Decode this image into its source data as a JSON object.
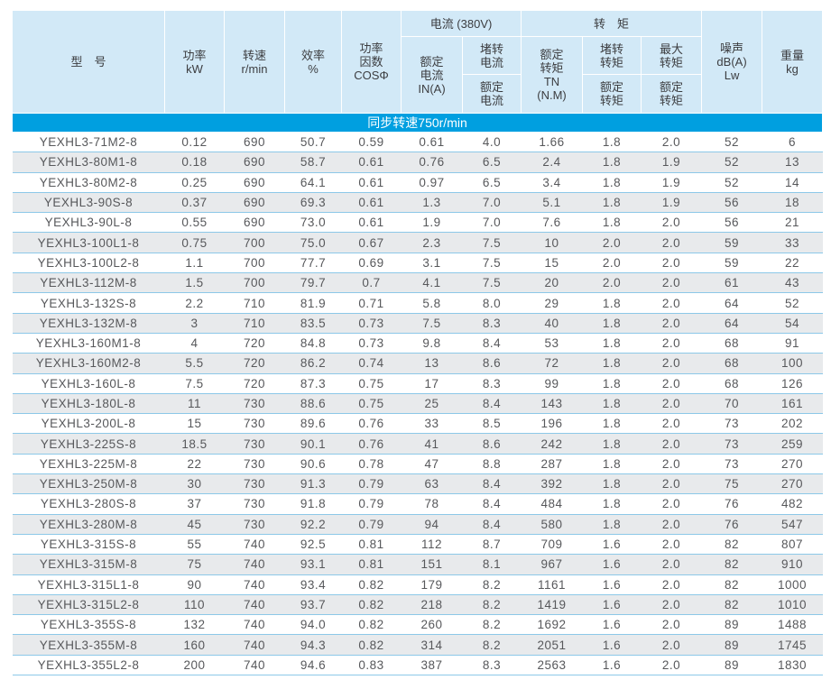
{
  "table": {
    "banner": "同步转速750r/min",
    "header": {
      "model": "型　号",
      "power": [
        "功率",
        "kW"
      ],
      "speed": [
        "转速",
        "r/min"
      ],
      "efficiency": [
        "效率",
        "%"
      ],
      "cos": [
        "功率",
        "因数",
        "COSΦ"
      ],
      "current_group": "电流 (380V)",
      "rated_current": [
        "额定",
        "电流",
        "IN(A)"
      ],
      "locked_current_num": [
        "堵转",
        "电流"
      ],
      "locked_current_den": [
        "额定",
        "电流"
      ],
      "torque_group": "转　矩",
      "rated_torque": [
        "额定",
        "转矩",
        "TN",
        "(N.M)"
      ],
      "locked_torque_num": [
        "堵转",
        "转矩"
      ],
      "locked_torque_den": [
        "额定",
        "转矩"
      ],
      "max_torque_num": [
        "最大",
        "转矩"
      ],
      "max_torque_den": [
        "额定",
        "转矩"
      ],
      "noise": [
        "噪声",
        "dB(A)",
        "Lw"
      ],
      "weight": [
        "重量",
        "kg"
      ]
    },
    "column_ids": [
      "model",
      "power_kw",
      "speed_rpm",
      "efficiency_pct",
      "cos_phi",
      "rated_current_a",
      "locked_to_rated_current",
      "rated_torque_nm",
      "locked_to_rated_torque",
      "max_to_rated_torque",
      "noise_db",
      "weight_kg"
    ],
    "rows": [
      [
        "YEXHL3-71M2-8",
        "0.12",
        "690",
        "50.7",
        "0.59",
        "0.61",
        "4.0",
        "1.66",
        "1.8",
        "2.0",
        "52",
        "6"
      ],
      [
        "YEXHL3-80M1-8",
        "0.18",
        "690",
        "58.7",
        "0.61",
        "0.76",
        "6.5",
        "2.4",
        "1.8",
        "1.9",
        "52",
        "13"
      ],
      [
        "YEXHL3-80M2-8",
        "0.25",
        "690",
        "64.1",
        "0.61",
        "0.97",
        "6.5",
        "3.4",
        "1.8",
        "1.9",
        "52",
        "14"
      ],
      [
        "YEXHL3-90S-8",
        "0.37",
        "690",
        "69.3",
        "0.61",
        "1.3",
        "7.0",
        "5.1",
        "1.8",
        "1.9",
        "56",
        "18"
      ],
      [
        "YEXHL3-90L-8",
        "0.55",
        "690",
        "73.0",
        "0.61",
        "1.9",
        "7.0",
        "7.6",
        "1.8",
        "2.0",
        "56",
        "21"
      ],
      [
        "YEXHL3-100L1-8",
        "0.75",
        "700",
        "75.0",
        "0.67",
        "2.3",
        "7.5",
        "10",
        "2.0",
        "2.0",
        "59",
        "33"
      ],
      [
        "YEXHL3-100L2-8",
        "1.1",
        "700",
        "77.7",
        "0.69",
        "3.1",
        "7.5",
        "15",
        "2.0",
        "2.0",
        "59",
        "22"
      ],
      [
        "YEXHL3-112M-8",
        "1.5",
        "700",
        "79.7",
        "0.7",
        "4.1",
        "7.5",
        "20",
        "2.0",
        "2.0",
        "61",
        "43"
      ],
      [
        "YEXHL3-132S-8",
        "2.2",
        "710",
        "81.9",
        "0.71",
        "5.8",
        "8.0",
        "29",
        "1.8",
        "2.0",
        "64",
        "52"
      ],
      [
        "YEXHL3-132M-8",
        "3",
        "710",
        "83.5",
        "0.73",
        "7.5",
        "8.3",
        "40",
        "1.8",
        "2.0",
        "64",
        "54"
      ],
      [
        "YEXHL3-160M1-8",
        "4",
        "720",
        "84.8",
        "0.73",
        "9.8",
        "8.4",
        "53",
        "1.8",
        "2.0",
        "68",
        "91"
      ],
      [
        "YEXHL3-160M2-8",
        "5.5",
        "720",
        "86.2",
        "0.74",
        "13",
        "8.6",
        "72",
        "1.8",
        "2.0",
        "68",
        "100"
      ],
      [
        "YEXHL3-160L-8",
        "7.5",
        "720",
        "87.3",
        "0.75",
        "17",
        "8.3",
        "99",
        "1.8",
        "2.0",
        "68",
        "126"
      ],
      [
        "YEXHL3-180L-8",
        "11",
        "730",
        "88.6",
        "0.75",
        "25",
        "8.4",
        "143",
        "1.8",
        "2.0",
        "70",
        "161"
      ],
      [
        "YEXHL3-200L-8",
        "15",
        "730",
        "89.6",
        "0.76",
        "33",
        "8.5",
        "196",
        "1.8",
        "2.0",
        "73",
        "202"
      ],
      [
        "YEXHL3-225S-8",
        "18.5",
        "730",
        "90.1",
        "0.76",
        "41",
        "8.6",
        "242",
        "1.8",
        "2.0",
        "73",
        "259"
      ],
      [
        "YEXHL3-225M-8",
        "22",
        "730",
        "90.6",
        "0.78",
        "47",
        "8.8",
        "287",
        "1.8",
        "2.0",
        "73",
        "270"
      ],
      [
        "YEXHL3-250M-8",
        "30",
        "730",
        "91.3",
        "0.79",
        "63",
        "8.4",
        "392",
        "1.8",
        "2.0",
        "75",
        "270"
      ],
      [
        "YEXHL3-280S-8",
        "37",
        "730",
        "91.8",
        "0.79",
        "78",
        "8.4",
        "484",
        "1.8",
        "2.0",
        "76",
        "482"
      ],
      [
        "YEXHL3-280M-8",
        "45",
        "730",
        "92.2",
        "0.79",
        "94",
        "8.4",
        "580",
        "1.8",
        "2.0",
        "76",
        "547"
      ],
      [
        "YEXHL3-315S-8",
        "55",
        "740",
        "92.5",
        "0.81",
        "112",
        "8.7",
        "709",
        "1.6",
        "2.0",
        "82",
        "807"
      ],
      [
        "YEXHL3-315M-8",
        "75",
        "740",
        "93.1",
        "0.81",
        "151",
        "8.1",
        "967",
        "1.6",
        "2.0",
        "82",
        "910"
      ],
      [
        "YEXHL3-315L1-8",
        "90",
        "740",
        "93.4",
        "0.82",
        "179",
        "8.2",
        "1161",
        "1.6",
        "2.0",
        "82",
        "1000"
      ],
      [
        "YEXHL3-315L2-8",
        "110",
        "740",
        "93.7",
        "0.82",
        "218",
        "8.2",
        "1419",
        "1.6",
        "2.0",
        "82",
        "1010"
      ],
      [
        "YEXHL3-355S-8",
        "132",
        "740",
        "94.0",
        "0.82",
        "260",
        "8.2",
        "1692",
        "1.6",
        "2.0",
        "89",
        "1488"
      ],
      [
        "YEXHL3-355M-8",
        "160",
        "740",
        "94.3",
        "0.82",
        "314",
        "8.2",
        "2051",
        "1.6",
        "2.0",
        "89",
        "1745"
      ],
      [
        "YEXHL3-355L2-8",
        "200",
        "740",
        "94.6",
        "0.83",
        "387",
        "8.3",
        "2563",
        "1.6",
        "2.0",
        "89",
        "1830"
      ]
    ],
    "colors": {
      "header_bg": "#d2e9f7",
      "banner_bg": "#009fe0",
      "banner_text": "#ffffff",
      "alt_row_bg": "#e8eaec",
      "row_divider": "#8cc8e8",
      "text": "#57585b"
    }
  }
}
